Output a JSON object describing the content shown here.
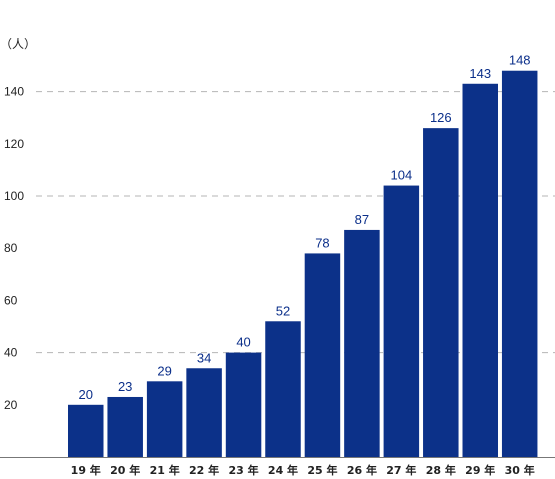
{
  "chart_data": {
    "type": "bar",
    "unit_label": "（人）",
    "categories": [
      "19 年",
      "20 年",
      "21 年",
      "22 年",
      "23 年",
      "24 年",
      "25 年",
      "26 年",
      "27 年",
      "28 年",
      "29 年",
      "30 年"
    ],
    "values": [
      20,
      23,
      29,
      34,
      40,
      52,
      78,
      87,
      104,
      126,
      143,
      148
    ],
    "y_ticks": [
      20,
      40,
      60,
      80,
      100,
      120,
      140
    ],
    "dashed_gridlines_at": [
      40,
      100,
      140
    ],
    "ylim": [
      0,
      160
    ],
    "data_labels": true,
    "grid": true
  },
  "colors": {
    "bar": "#0c3189",
    "value_label": "#0b2f8a",
    "grid": "#b5b5b5",
    "axis": "#777777"
  }
}
